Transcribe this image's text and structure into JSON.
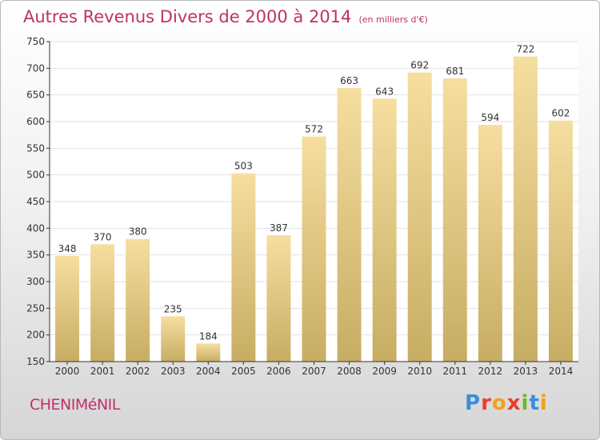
{
  "header": {
    "title": "Autres Revenus Divers de 2000 à 2014",
    "unit": "(en milliers d'€)"
  },
  "footer": {
    "city": "CHENIMéNIL",
    "logo": [
      "P",
      "r",
      "o",
      "x",
      "i",
      "t",
      "i"
    ]
  },
  "colors": {
    "title": "#c0306a",
    "bar_top": "#f6dea0",
    "bar_bottom": "#c7ad63",
    "grid": "#e2e2e2",
    "axis": "#333333"
  },
  "chart_data": {
    "type": "bar",
    "categories": [
      "2000",
      "2001",
      "2002",
      "2003",
      "2004",
      "2005",
      "2006",
      "2007",
      "2008",
      "2009",
      "2010",
      "2011",
      "2012",
      "2013",
      "2014"
    ],
    "values": [
      348,
      370,
      380,
      235,
      184,
      503,
      387,
      572,
      663,
      643,
      692,
      681,
      594,
      722,
      602
    ],
    "title": "Autres Revenus Divers de 2000 à 2014",
    "xlabel": "",
    "ylabel": "",
    "ylim": [
      150,
      750
    ],
    "yticks": [
      150,
      200,
      250,
      300,
      350,
      400,
      450,
      500,
      550,
      600,
      650,
      700,
      750
    ],
    "grid": true,
    "data_labels": true
  }
}
